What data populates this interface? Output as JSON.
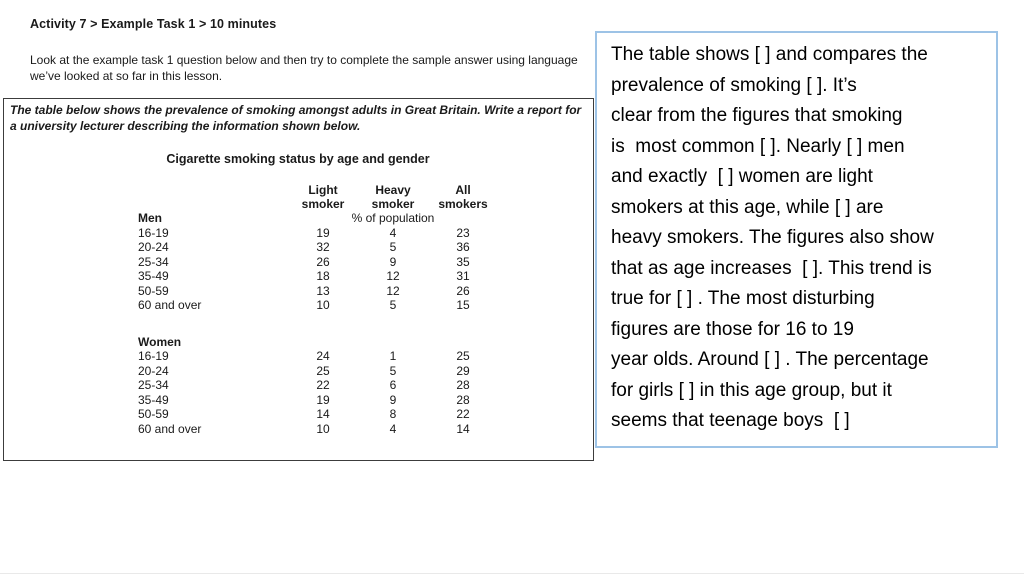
{
  "worksheet": {
    "heading": "Activity 7 > Example Task 1 > 10 minutes",
    "intro": "Look at the example task 1 question below and then try to complete the sample answer using language we’ve looked at so far in this lesson.",
    "task_prompt": "The table below shows the prevalence of smoking amongst adults in Great Britain.  Write a report for a university lecturer describing the information shown below.",
    "table": {
      "title": "Cigarette smoking status by age and gender",
      "columns": [
        "Light\nsmoker",
        "Heavy\nsmoker",
        "All\nsmokers"
      ],
      "unit_note": "% of population",
      "groups": [
        {
          "label": "Men",
          "show_unit": true,
          "rows": [
            [
              "16-19",
              "19",
              "4",
              "23"
            ],
            [
              "20-24",
              "32",
              "5",
              "36"
            ],
            [
              "25-34",
              "26",
              "9",
              "35"
            ],
            [
              "35-49",
              "18",
              "12",
              "31"
            ],
            [
              "50-59",
              "13",
              "12",
              "26"
            ],
            [
              "60 and over",
              "10",
              "5",
              "15"
            ]
          ]
        },
        {
          "label": "Women",
          "show_unit": false,
          "rows": [
            [
              "16-19",
              "24",
              "1",
              "25"
            ],
            [
              "20-24",
              "25",
              "5",
              "29"
            ],
            [
              "25-34",
              "22",
              "6",
              "28"
            ],
            [
              "35-49",
              "19",
              "9",
              "28"
            ],
            [
              "50-59",
              "14",
              "8",
              "22"
            ],
            [
              "60 and over",
              "10",
              "4",
              "14"
            ]
          ]
        }
      ]
    }
  },
  "answer_box": {
    "border_color": "#9DC3E6",
    "text": "The table shows [ ] and compares the\nprevalence of smoking [ ]. It’s\nclear from the figures that smoking\nis  most common [ ]. Nearly [ ] men\nand exactly  [ ] women are light\nsmokers at this age, while [ ] are\nheavy smokers. The figures also show\nthat as age increases  [ ]. This trend is\ntrue for [ ] . The most disturbing\nfigures are those for 16 to 19\nyear olds. Around [ ] . The percentage\nfor girls [ ] in this age group, but it\nseems that teenage boys  [ ]"
  }
}
